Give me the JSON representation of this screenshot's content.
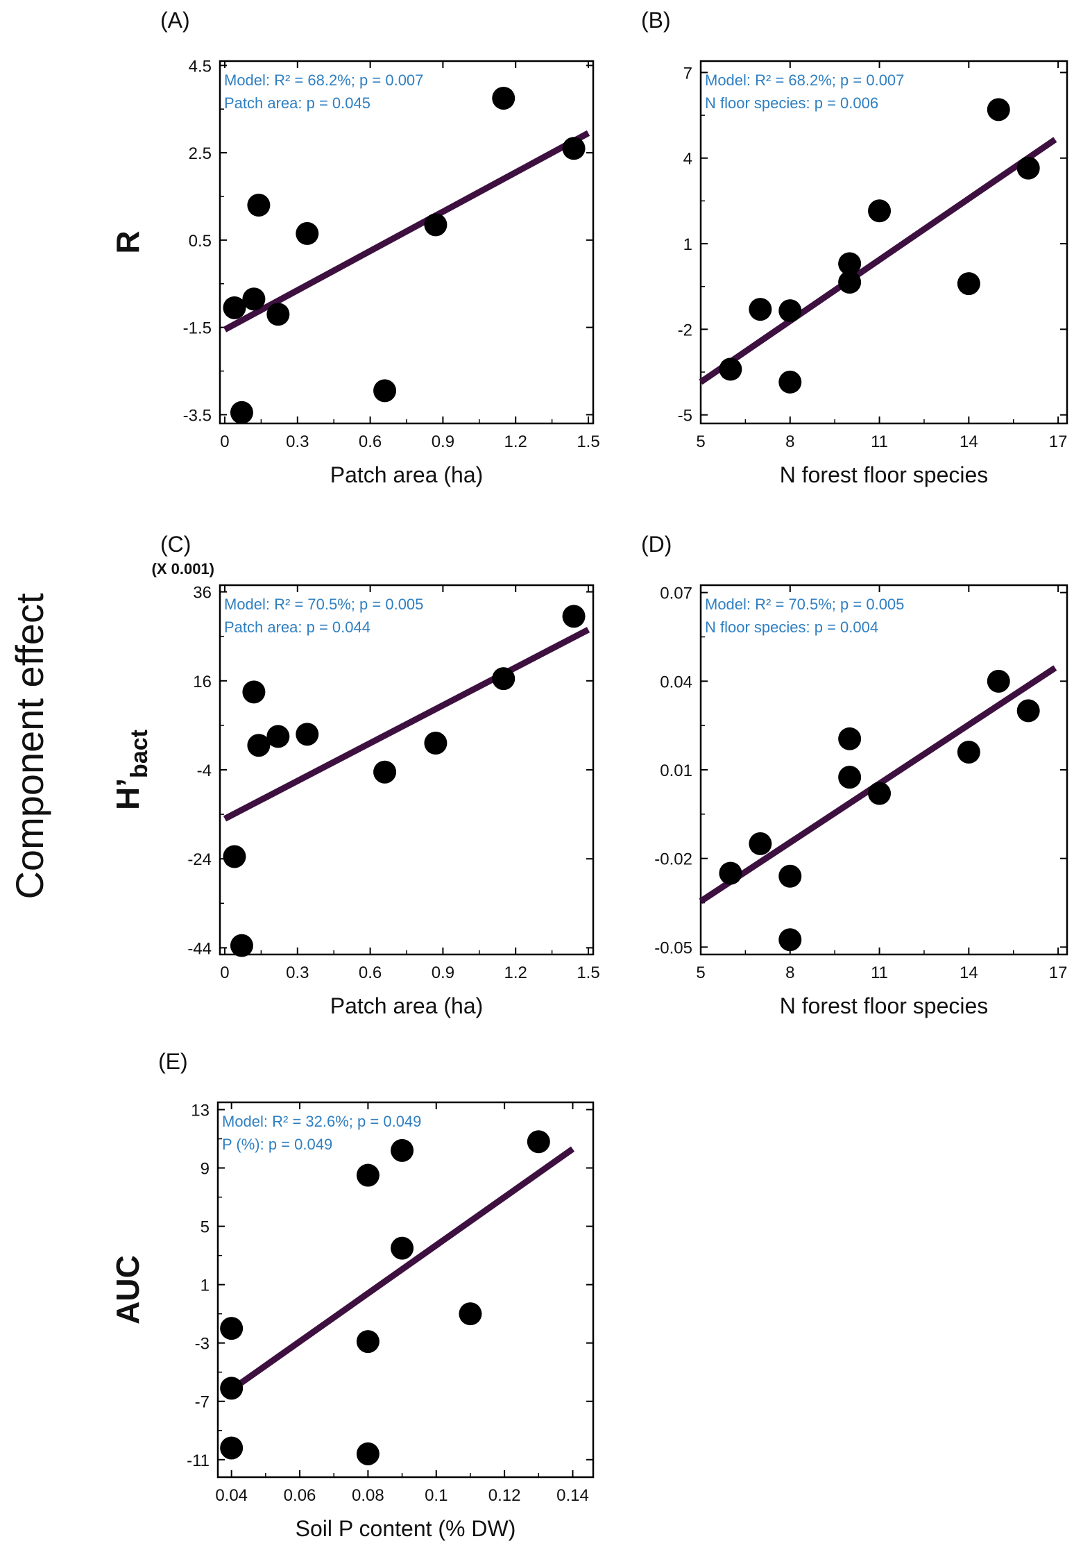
{
  "figure": {
    "y_axis_group_label": "Component effect"
  },
  "chart_data": [
    {
      "id": "A",
      "panel_label": "(A)",
      "type": "scatter",
      "ylabel": "R",
      "xlabel": "Patch area (ha)",
      "xlim": [
        -0.02,
        1.52
      ],
      "ylim": [
        -3.7,
        4.6
      ],
      "xticks": [
        "0",
        "0.3",
        "0.6",
        "0.9",
        "1.2",
        "1.5"
      ],
      "yticks": [
        "-3.5",
        "-1.5",
        "0.5",
        "2.5",
        "4.5"
      ],
      "annotations": [
        "Model: R² = 68.2%; p = 0.007",
        "Patch area: p = 0.045"
      ],
      "points": [
        [
          0.04,
          -1.05
        ],
        [
          0.07,
          -3.45
        ],
        [
          0.12,
          -0.85
        ],
        [
          0.14,
          1.3
        ],
        [
          0.22,
          -1.2
        ],
        [
          0.34,
          0.65
        ],
        [
          0.66,
          -2.95
        ],
        [
          0.87,
          0.85
        ],
        [
          1.15,
          3.75
        ],
        [
          1.44,
          2.6
        ]
      ],
      "fit": [
        [
          0.0,
          -1.55
        ],
        [
          1.5,
          2.95
        ]
      ]
    },
    {
      "id": "B",
      "panel_label": "(B)",
      "type": "scatter",
      "ylabel": "",
      "xlabel": "N forest floor species",
      "xlim": [
        5,
        17.3
      ],
      "ylim": [
        -5.3,
        7.4
      ],
      "xticks": [
        "5",
        "8",
        "11",
        "14",
        "17"
      ],
      "yticks": [
        "-5",
        "-2",
        "1",
        "4",
        "7"
      ],
      "annotations": [
        "Model: R² = 68.2%; p = 0.007",
        "N floor species: p = 0.006"
      ],
      "points": [
        [
          6,
          -3.4
        ],
        [
          7,
          -1.3
        ],
        [
          8,
          -1.35
        ],
        [
          8,
          -3.85
        ],
        [
          10,
          0.3
        ],
        [
          10,
          -0.35
        ],
        [
          11,
          2.15
        ],
        [
          14,
          -0.4
        ],
        [
          15,
          5.7
        ],
        [
          16,
          3.65
        ]
      ],
      "fit": [
        [
          5,
          -3.85
        ],
        [
          16.9,
          4.65
        ]
      ]
    },
    {
      "id": "C",
      "panel_label": "(C)",
      "type": "scatter",
      "ylabel": "H’bact",
      "y_multiplier_label": "(X 0.001)",
      "xlabel": "Patch area (ha)",
      "xlim": [
        -0.02,
        1.52
      ],
      "ylim": [
        -45.5,
        37.5
      ],
      "xticks": [
        "0",
        "0.3",
        "0.6",
        "0.9",
        "1.2",
        "1.5"
      ],
      "yticks": [
        "-44",
        "-24",
        "-4",
        "16",
        "36"
      ],
      "annotations": [
        "Model: R² = 70.5%; p = 0.005",
        "Patch area: p = 0.044"
      ],
      "points": [
        [
          0.04,
          -23.5
        ],
        [
          0.07,
          -43.5
        ],
        [
          0.12,
          13.5
        ],
        [
          0.14,
          1.5
        ],
        [
          0.22,
          3.5
        ],
        [
          0.34,
          4.0
        ],
        [
          0.66,
          -4.5
        ],
        [
          0.87,
          2.0
        ],
        [
          1.15,
          16.5
        ],
        [
          1.44,
          30.5
        ]
      ],
      "fit": [
        [
          0.0,
          -15.0
        ],
        [
          1.5,
          27.5
        ]
      ]
    },
    {
      "id": "D",
      "panel_label": "(D)",
      "type": "scatter",
      "ylabel": "",
      "xlabel": "N forest floor species",
      "xlim": [
        5,
        17.3
      ],
      "ylim": [
        -0.0525,
        0.0725
      ],
      "xticks": [
        "5",
        "8",
        "11",
        "14",
        "17"
      ],
      "yticks": [
        "-0.05",
        "-0.02",
        "0.01",
        "0.04",
        "0.07"
      ],
      "annotations": [
        "Model: R² = 70.5%; p = 0.005",
        "N floor species: p = 0.004"
      ],
      "points": [
        [
          6,
          -0.025
        ],
        [
          7,
          -0.015
        ],
        [
          8,
          -0.026
        ],
        [
          8,
          -0.0475
        ],
        [
          10,
          0.0205
        ],
        [
          10,
          0.0075
        ],
        [
          11,
          0.002
        ],
        [
          14,
          0.016
        ],
        [
          15,
          0.04
        ],
        [
          16,
          0.03
        ]
      ],
      "fit": [
        [
          5,
          -0.0345
        ],
        [
          16.9,
          0.0445
        ]
      ]
    },
    {
      "id": "E",
      "panel_label": "(E)",
      "type": "scatter",
      "ylabel": "AUC",
      "xlabel": "Soil P content (% DW)",
      "xlim": [
        0.036,
        0.146
      ],
      "ylim": [
        -12.2,
        13.5
      ],
      "xticks": [
        "0.04",
        "0.06",
        "0.08",
        "0.1",
        "0.12",
        "0.14"
      ],
      "yticks": [
        "-11",
        "-7",
        "-3",
        "1",
        "5",
        "9",
        "13"
      ],
      "annotations": [
        "Model: R² = 32.6%; p = 0.049",
        "P (%): p = 0.049"
      ],
      "points": [
        [
          0.04,
          -2.0
        ],
        [
          0.04,
          -6.1
        ],
        [
          0.04,
          -10.2
        ],
        [
          0.08,
          8.5
        ],
        [
          0.08,
          -2.9
        ],
        [
          0.08,
          -10.6
        ],
        [
          0.09,
          10.2
        ],
        [
          0.09,
          3.5
        ],
        [
          0.11,
          -1.0
        ],
        [
          0.13,
          10.8
        ]
      ],
      "fit": [
        [
          0.04,
          -6.2
        ],
        [
          0.14,
          10.3
        ]
      ]
    }
  ]
}
